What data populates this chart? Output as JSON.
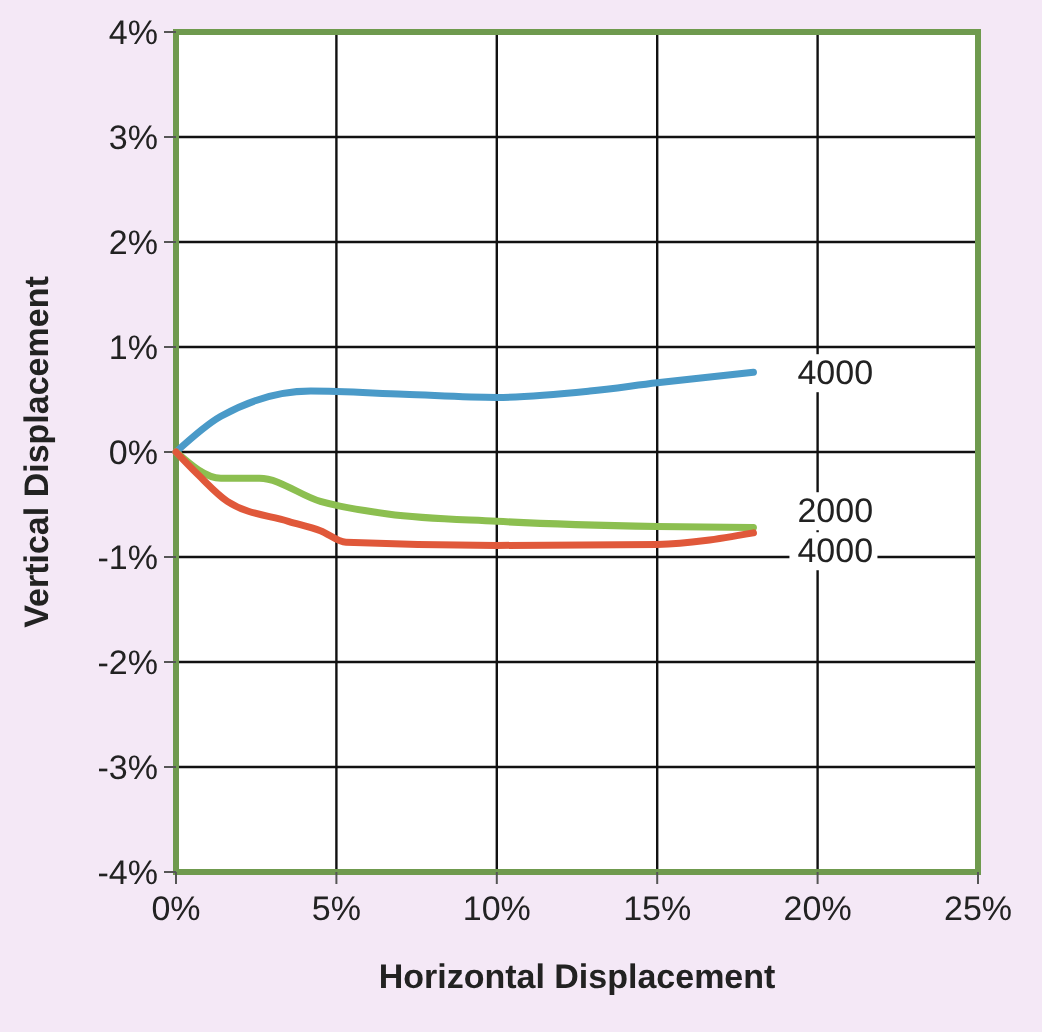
{
  "chart_data": {
    "type": "line",
    "xlabel": "Horizontal Displacement",
    "ylabel": "Vertical Displacement",
    "xlim": [
      0,
      25
    ],
    "ylim": [
      -4,
      4
    ],
    "xticks": [
      {
        "value": 0,
        "label": "0%"
      },
      {
        "value": 5,
        "label": "5%"
      },
      {
        "value": 10,
        "label": "10%"
      },
      {
        "value": 15,
        "label": "15%"
      },
      {
        "value": 20,
        "label": "20%"
      },
      {
        "value": 25,
        "label": "25%"
      }
    ],
    "yticks": [
      {
        "value": -4,
        "label": "-4%"
      },
      {
        "value": -3,
        "label": "-3%"
      },
      {
        "value": -2,
        "label": "-2%"
      },
      {
        "value": -1,
        "label": "-1%"
      },
      {
        "value": 0,
        "label": "0%"
      },
      {
        "value": 1,
        "label": "1%"
      },
      {
        "value": 2,
        "label": "2%"
      },
      {
        "value": 3,
        "label": "3%"
      },
      {
        "value": 4,
        "label": "4%"
      }
    ],
    "grid": true,
    "marker": "none",
    "line_style": "solid",
    "series": [
      {
        "name": "4000",
        "color": "#4a9ac8",
        "x": [
          0,
          1.4,
          4.2,
          7.1,
          10,
          12.9,
          15,
          18
        ],
        "values": [
          0,
          0.34,
          0.58,
          0.55,
          0.52,
          0.58,
          0.66,
          0.76
        ]
      },
      {
        "name": "2000",
        "color": "#8cbf50",
        "x": [
          0,
          1.4,
          2.6,
          4.5,
          6.6,
          10,
          15,
          18
        ],
        "values": [
          0,
          -0.25,
          -0.25,
          -0.47,
          -0.59,
          -0.66,
          -0.71,
          -0.72
        ]
      },
      {
        "name": "4000",
        "color": "#e0583a",
        "x": [
          0,
          0.7,
          1.6,
          3.5,
          4.5,
          5.3,
          10,
          15,
          18
        ],
        "values": [
          0,
          -0.22,
          -0.47,
          -0.66,
          -0.75,
          -0.86,
          -0.89,
          -0.88,
          -0.77
        ]
      }
    ]
  }
}
